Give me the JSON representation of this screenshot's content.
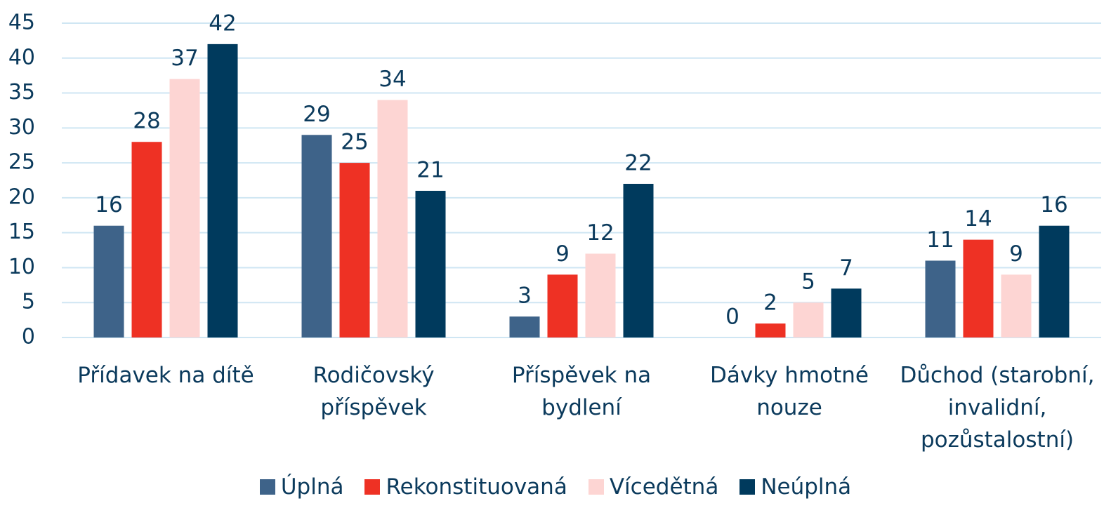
{
  "chart_data": {
    "type": "bar",
    "categories": [
      "Přídavek na dítě",
      "Rodičovský příspěvek",
      "Příspěvek na bydlení",
      "Dávky hmotné nouze",
      "Důchod (starobní, invalidní, pozůstalostní)"
    ],
    "series": [
      {
        "name": "Úplná",
        "color": "#3e6389",
        "values": [
          16,
          29,
          3,
          0,
          11
        ]
      },
      {
        "name": "Rekonstituovaná",
        "color": "#ee3124",
        "values": [
          28,
          25,
          9,
          2,
          14
        ]
      },
      {
        "name": "Vícedětná",
        "color": "#fdd5d3",
        "values": [
          37,
          34,
          12,
          5,
          9
        ]
      },
      {
        "name": "Neúplná",
        "color": "#003a5d",
        "values": [
          42,
          21,
          22,
          7,
          16
        ]
      }
    ],
    "ylim": [
      0,
      45
    ],
    "yticks": [
      0,
      5,
      10,
      15,
      20,
      25,
      30,
      35,
      40,
      45
    ],
    "grid": true,
    "legend": "bottom"
  }
}
